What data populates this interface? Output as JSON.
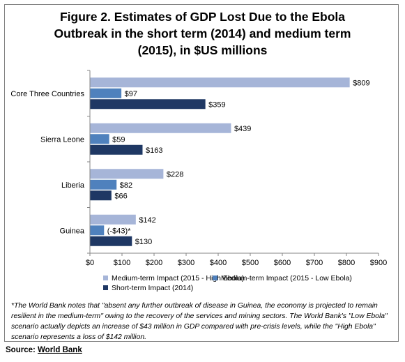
{
  "title_lines": [
    "Figure 2. Estimates of GDP Lost Due to the Ebola",
    "Outbreak in the short term (2014) and medium term",
    "(2015), in $US millions"
  ],
  "chart_data": {
    "type": "bar",
    "orientation": "horizontal",
    "categories": [
      "Core Three Countries",
      "Sierra Leone",
      "Liberia",
      "Guinea"
    ],
    "series": [
      {
        "name": "Medium-term Impact (2015 - High Ebola)",
        "color": "#a6b5d8",
        "values": [
          809,
          439,
          228,
          142
        ],
        "labels": [
          "$809",
          "$439",
          "$228",
          "$142"
        ]
      },
      {
        "name": "Medium-term Impact (2015 - Low Ebola)",
        "color": "#4f81bd",
        "values": [
          97,
          59,
          82,
          43
        ],
        "labels": [
          "$97",
          "$59",
          "$82",
          "(-$43)*"
        ]
      },
      {
        "name": "Short-term Impact (2014)",
        "color": "#1f3864",
        "values": [
          359,
          163,
          66,
          130
        ],
        "labels": [
          "$359",
          "$163",
          "$66",
          "$130"
        ]
      }
    ],
    "xlim": [
      0,
      900
    ],
    "xticks": [
      0,
      100,
      200,
      300,
      400,
      500,
      600,
      700,
      800,
      900
    ],
    "xtick_labels": [
      "$0",
      "$100",
      "$200",
      "$300",
      "$400",
      "$500",
      "$600",
      "$700",
      "$800",
      "$900"
    ],
    "grid": false,
    "legend_position": "bottom"
  },
  "footnote": "*The World Bank notes that \"absent any further outbreak of disease in Guinea, the economy is projected to remain resilient in the medium-term\" owing to the recovery of the services and mining sectors. The World Bank's \"Low Ebola\" scenario actually depicts an increase of $43 million in GDP compared with pre-crisis levels, while the \"High Ebola\" scenario represents a loss of $142 million.",
  "source_label": "Source:",
  "source_link": "World Bank"
}
